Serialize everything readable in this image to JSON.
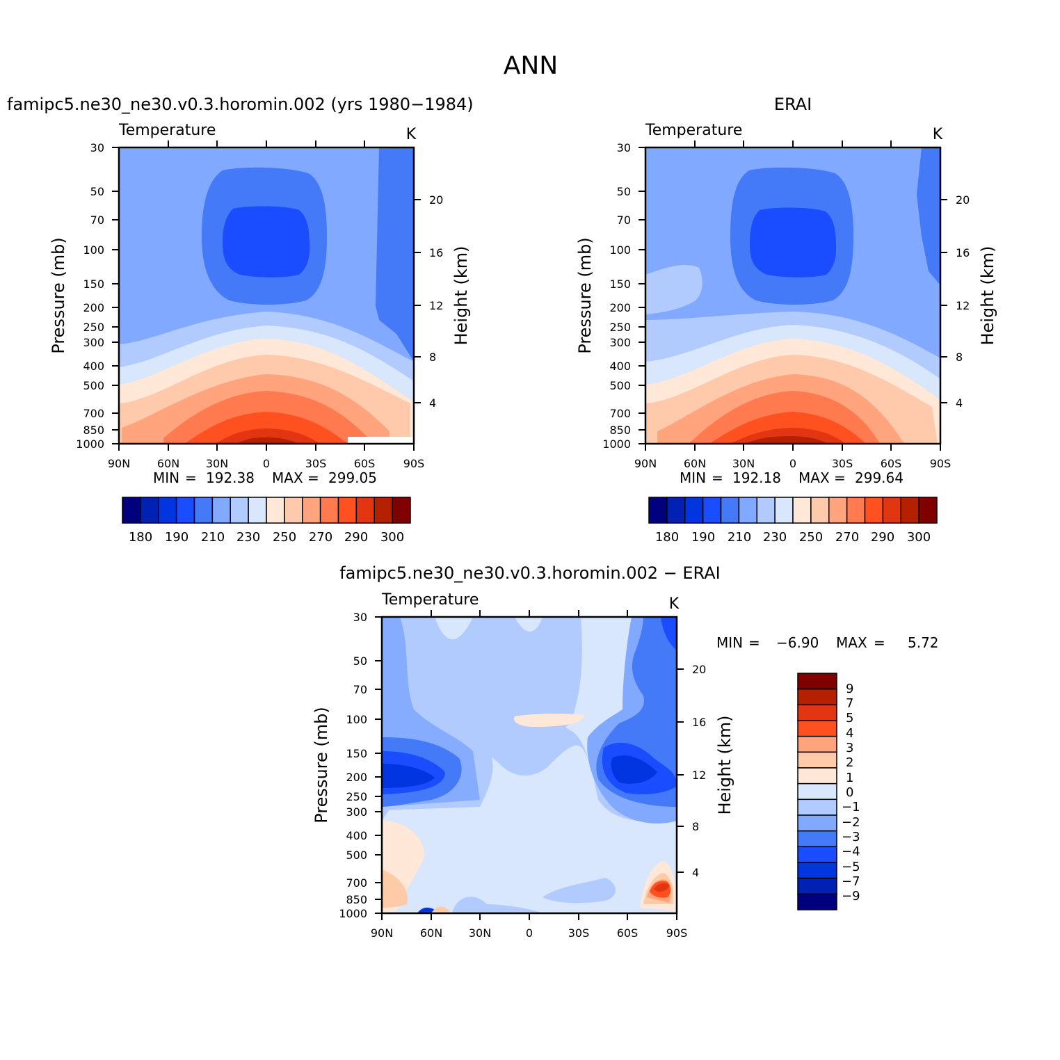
{
  "figure_title": "ANN",
  "chart_data": [
    {
      "type": "heatmap",
      "panel": "model",
      "title": "famipc5.ne30_ne30.v0.3.horomin.002 (yrs 1980-1984)",
      "variable": "Temperature",
      "units": "K",
      "ylabel": "Pressure (mb)",
      "y2label": "Height (km)",
      "y_ticks": [
        "30",
        "50",
        "70",
        "100",
        "150",
        "200",
        "250",
        "300",
        "400",
        "500",
        "700",
        "850",
        "1000"
      ],
      "y2_ticks": [
        "20",
        "16",
        "12",
        "8",
        "4"
      ],
      "x_ticks": [
        "90N",
        "60N",
        "30N",
        "0",
        "30S",
        "60S",
        "90S"
      ],
      "min_label": "MIN",
      "min_value": "192.38",
      "max_label": "MAX",
      "max_value": "299.05",
      "levels": [
        180,
        190,
        200,
        210,
        220,
        230,
        240,
        250,
        260,
        270,
        280,
        290,
        300
      ],
      "colorbar_labels": [
        "180",
        "190",
        "210",
        "230",
        "250",
        "270",
        "290",
        "300"
      ]
    },
    {
      "type": "heatmap",
      "panel": "obs",
      "title": "ERAI",
      "variable": "Temperature",
      "units": "K",
      "ylabel": "Pressure (mb)",
      "y2label": "Height (km)",
      "y_ticks": [
        "30",
        "50",
        "70",
        "100",
        "150",
        "200",
        "250",
        "300",
        "400",
        "500",
        "700",
        "850",
        "1000"
      ],
      "y2_ticks": [
        "20",
        "16",
        "12",
        "8",
        "4"
      ],
      "x_ticks": [
        "90N",
        "60N",
        "30N",
        "0",
        "30S",
        "60S",
        "90S"
      ],
      "min_label": "MIN",
      "min_value": "192.18",
      "max_label": "MAX",
      "max_value": "299.64",
      "levels": [
        180,
        190,
        200,
        210,
        220,
        230,
        240,
        250,
        260,
        270,
        280,
        290,
        300
      ],
      "colorbar_labels": [
        "180",
        "190",
        "210",
        "230",
        "250",
        "270",
        "290",
        "300"
      ]
    },
    {
      "type": "heatmap",
      "panel": "difference",
      "title": "famipc5.ne30_ne30.v0.3.horomin.002 - ERAI",
      "variable": "Temperature",
      "units": "K",
      "ylabel": "Pressure (mb)",
      "y2label": "Height (km)",
      "y_ticks": [
        "30",
        "50",
        "70",
        "100",
        "150",
        "200",
        "250",
        "300",
        "400",
        "500",
        "700",
        "850",
        "1000"
      ],
      "y2_ticks": [
        "20",
        "16",
        "12",
        "8",
        "4"
      ],
      "x_ticks": [
        "90N",
        "60N",
        "30N",
        "0",
        "30S",
        "60S",
        "90S"
      ],
      "min_label": "MIN",
      "min_value": "-6.90",
      "max_label": "MAX",
      "max_value": "5.72",
      "levels": [
        -9,
        -7,
        -5,
        -4,
        -3,
        -2,
        -1,
        0,
        1,
        2,
        3,
        4,
        5,
        7,
        9
      ],
      "colorbar_labels": [
        "9",
        "7",
        "5",
        "4",
        "3",
        "2",
        "1",
        "0",
        "-1",
        "-2",
        "-3",
        "-4",
        "-5",
        "-7",
        "-9"
      ]
    }
  ],
  "colors": {
    "temp_scale": [
      "#00007f",
      "#0021b4",
      "#0035e0",
      "#1a4dff",
      "#4479f7",
      "#80a9ff",
      "#b2cbff",
      "#d8e7fc",
      "#ffe8d8",
      "#ffc9ac",
      "#ffa47d",
      "#ff7a4f",
      "#ff5020",
      "#e23511",
      "#b52000",
      "#800000"
    ],
    "diff_scale": [
      "#800000",
      "#b52000",
      "#e23511",
      "#ff5020",
      "#ffa47d",
      "#ffcaa8",
      "#ffe8d8",
      "#d8e7fc",
      "#b2cbff",
      "#80a9ff",
      "#4479f7",
      "#1a4dff",
      "#0035e0",
      "#0021b4",
      "#00007f"
    ]
  }
}
